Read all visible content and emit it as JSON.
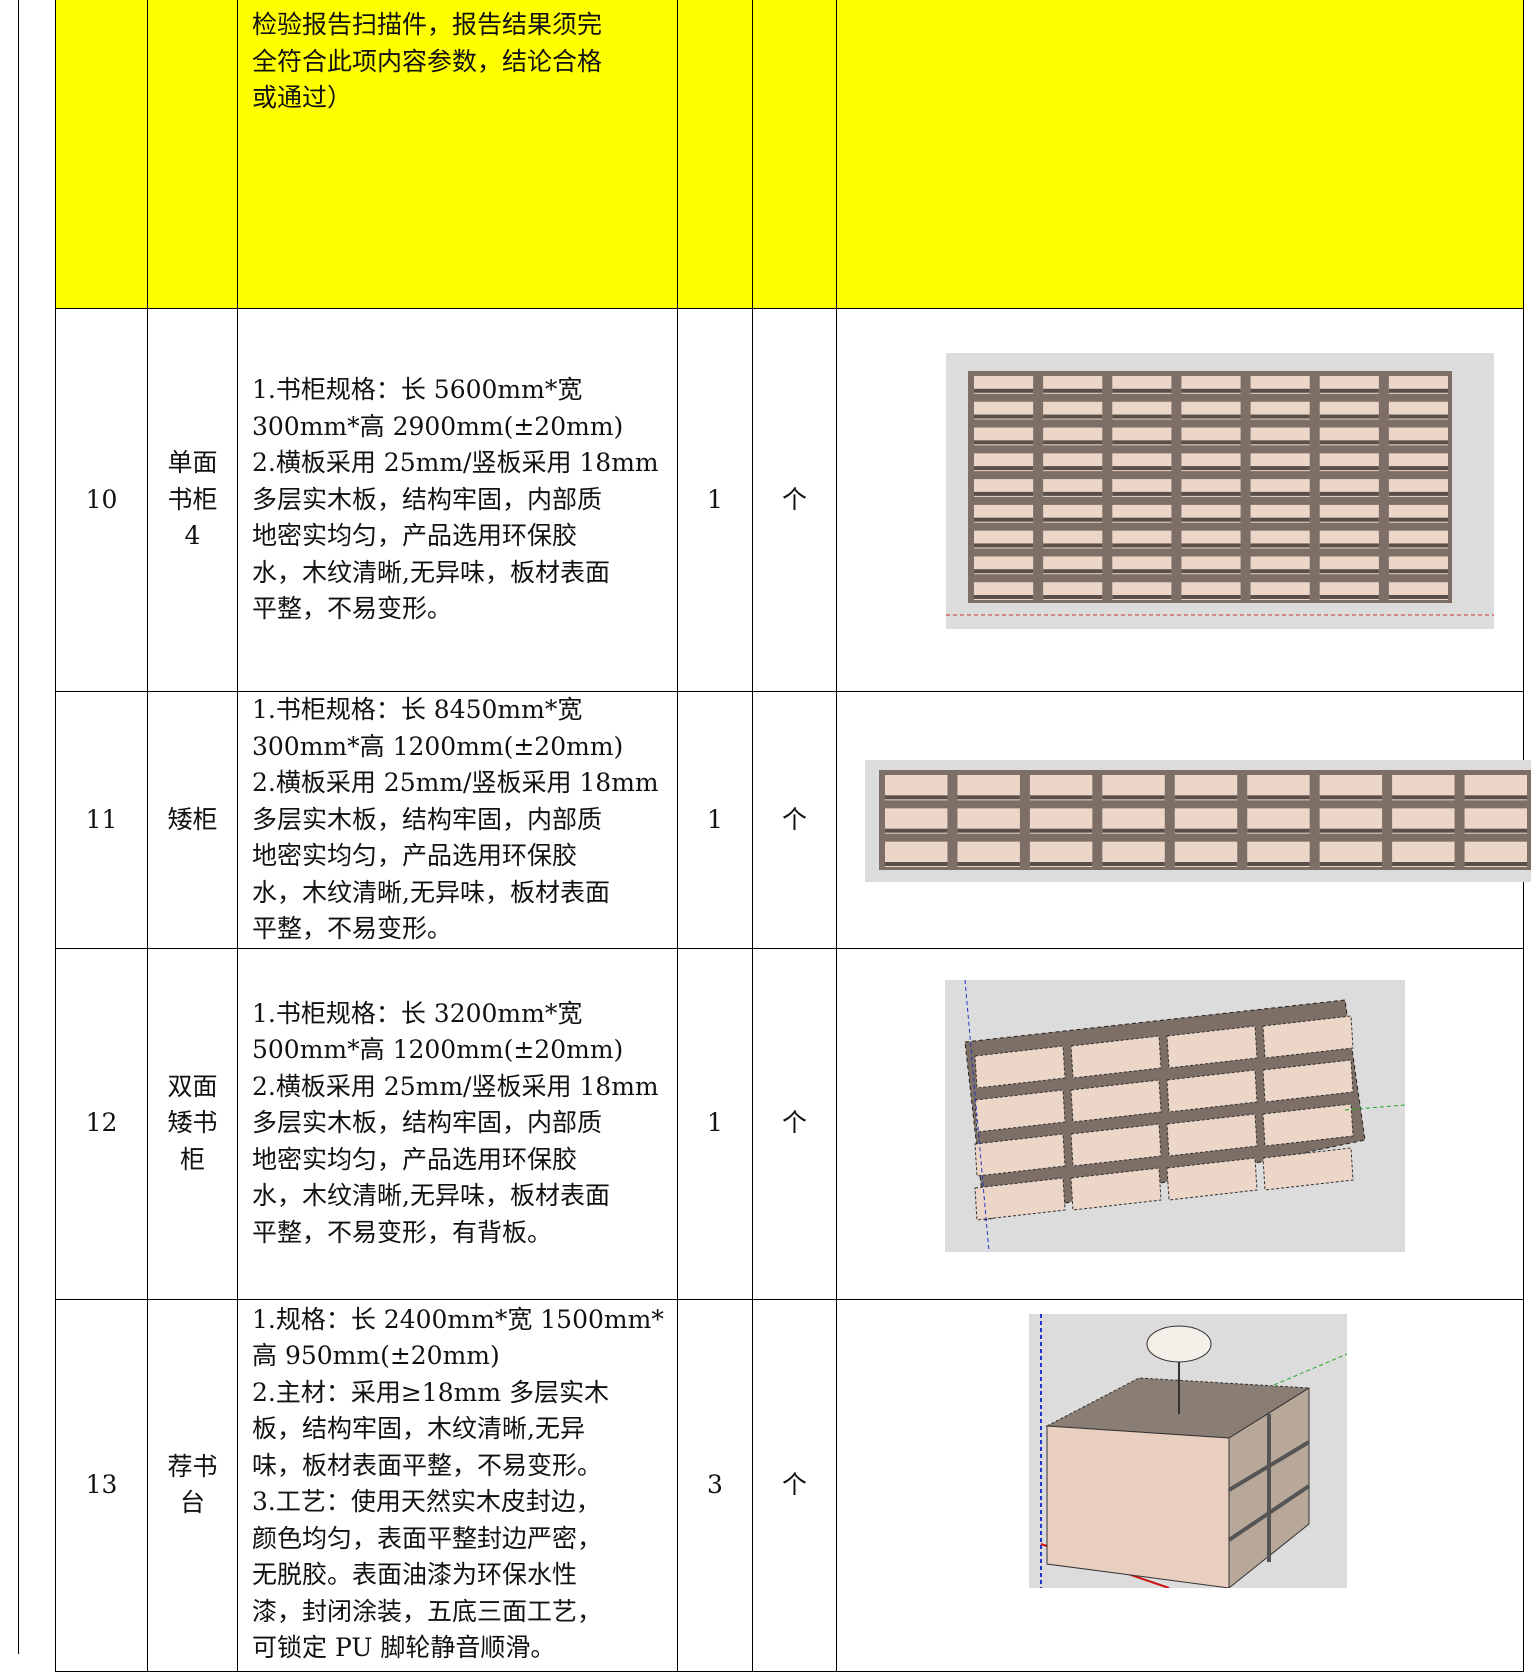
{
  "table": {
    "rows": [
      {
        "no": null,
        "name": null,
        "desc": [
          "检验报告扫描件，报告结果须完",
          "全符合此项内容参数，结论合格",
          "或通过）"
        ],
        "qty": null,
        "unit": null
      },
      {
        "no": 10,
        "name": "单面书柜4",
        "desc": [
          "1.书柜规格：长 5600mm*宽",
          "300mm*高 2900mm(±20mm)",
          "2.横板采用 25mm/竖板采用 18mm",
          "多层实木板，结构牢固，内部质",
          "地密实均匀，产品选用环保胶",
          "水，木纹清晰,无异味，板材表面",
          "平整，不易变形。"
        ],
        "qty": 1,
        "unit": "个"
      },
      {
        "no": 11,
        "name": "矮柜",
        "desc": [
          "1.书柜规格：长 8450mm*宽",
          "300mm*高 1200mm(±20mm)",
          "2.横板采用 25mm/竖板采用 18mm",
          "多层实木板，结构牢固，内部质",
          "地密实均匀，产品选用环保胶",
          "水，木纹清晰,无异味，板材表面",
          "平整，不易变形。"
        ],
        "qty": 1,
        "unit": "个"
      },
      {
        "no": 12,
        "name": "双面矮书柜",
        "desc": [
          "1.书柜规格：长 3200mm*宽",
          "500mm*高 1200mm(±20mm)",
          "2.横板采用 25mm/竖板采用 18mm",
          "多层实木板，结构牢固，内部质",
          "地密实均匀，产品选用环保胶",
          "水，木纹清晰,无异味，板材表面",
          "平整，不易变形，有背板。"
        ],
        "qty": 1,
        "unit": "个"
      },
      {
        "no": 13,
        "name": "荐书台",
        "desc": [
          "1.规格：长 2400mm*宽 1500mm*",
          "高 950mm(±20mm)",
          "2.主材：采用≥18mm 多层实木",
          "板，结构牢固，木纹清晰,无异",
          "味，板材表面平整，不易变形。",
          "3.工艺：使用天然实木皮封边，",
          "颜色均匀，表面平整封边严密，",
          "无脱胶。表面油漆为环保水性",
          "漆，封闭涂装，五底三面工艺，",
          "可锁定 PU 脚轮静音顺滑。"
        ],
        "qty": 3,
        "unit": "个"
      }
    ]
  }
}
